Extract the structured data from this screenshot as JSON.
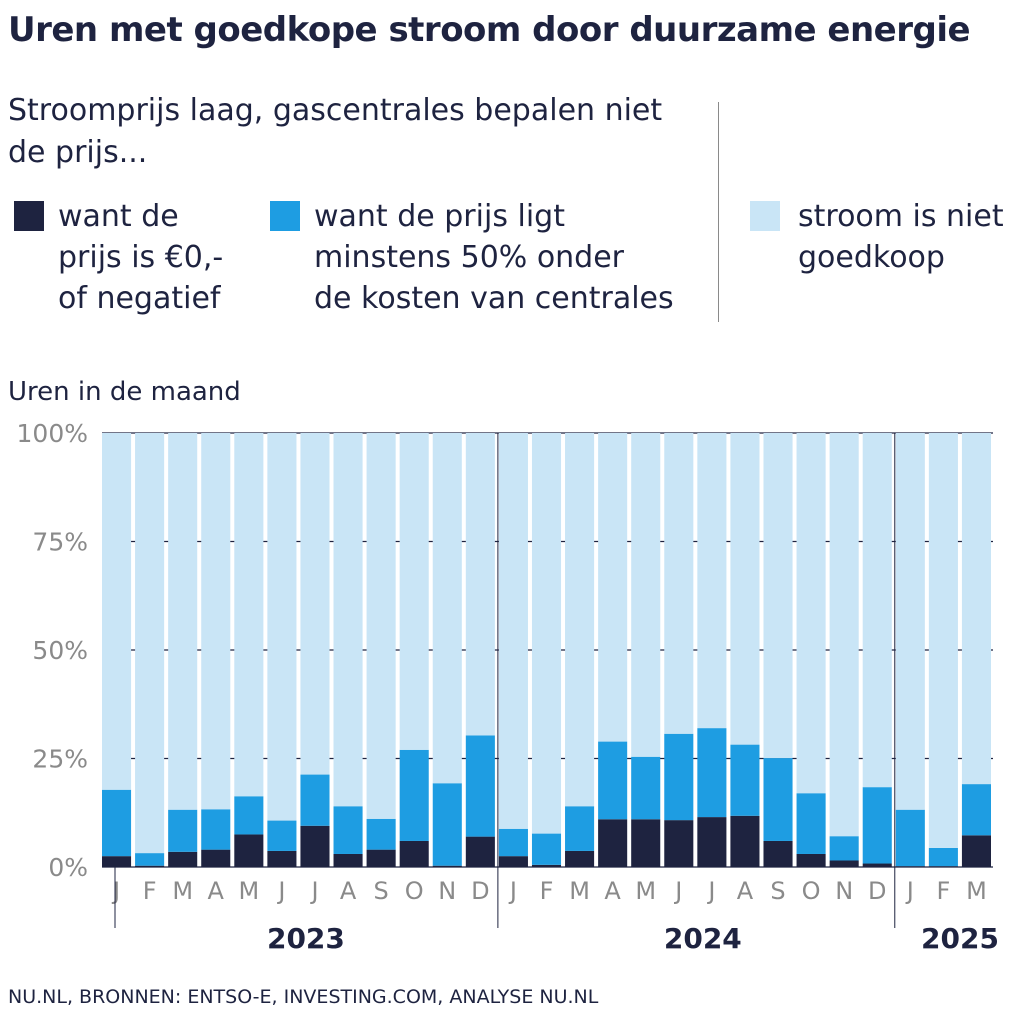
{
  "title": "Uren met goedkope stroom door duurzame energie",
  "subtitle": "Stroomprijs laag, gascentrales bepalen niet de prijs...",
  "legend": [
    {
      "label_lines": [
        "want de",
        "prijs is €0,-",
        "of negatief"
      ],
      "color": "#1e2340"
    },
    {
      "label_lines": [
        "want de prijs ligt",
        "minstens 50% onder",
        "de kosten van centrales"
      ],
      "color": "#1e9de2"
    },
    {
      "label_lines": [
        "stroom is niet",
        "goedkoop"
      ],
      "color": "#c9e5f6"
    }
  ],
  "footer": "NU.NL, BRONNEN: ENTSO-E, INVESTING.COM, ANALYSE NU.NL",
  "chart_data": {
    "type": "bar",
    "stacked": true,
    "ylabel": "Uren in de maand",
    "ylim": [
      0,
      100
    ],
    "yticks": [
      "0%",
      "25%",
      "50%",
      "75%",
      "100%"
    ],
    "grid": false,
    "categories": [
      "J",
      "F",
      "M",
      "A",
      "M",
      "J",
      "J",
      "A",
      "S",
      "O",
      "N",
      "D",
      "J",
      "F",
      "M",
      "A",
      "M",
      "J",
      "J",
      "A",
      "S",
      "O",
      "N",
      "D",
      "J",
      "F",
      "M"
    ],
    "years": [
      {
        "label": "2023",
        "months": 12
      },
      {
        "label": "2024",
        "months": 12
      },
      {
        "label": "2025",
        "months": 3
      }
    ],
    "series": [
      {
        "name": "want de prijs is €0,- of negatief",
        "color": "#1e2340",
        "values": [
          2.5,
          0.3,
          3.5,
          4,
          7.5,
          3.7,
          9.5,
          3,
          4,
          6,
          0.3,
          7,
          2.5,
          0.5,
          3.7,
          11,
          11,
          10.8,
          11.5,
          11.8,
          6,
          3,
          1.5,
          0.8,
          0.2,
          0.2,
          7.3
        ]
      },
      {
        "name": "want de prijs ligt minstens 50% onder de kosten van centrales",
        "color": "#1e9de2",
        "values": [
          15.3,
          2.9,
          9.7,
          9.3,
          8.8,
          7,
          11.8,
          11,
          7.1,
          21,
          19,
          23.3,
          6.3,
          7.2,
          10.3,
          17.9,
          14.4,
          19.9,
          20.5,
          16.4,
          19.1,
          14,
          5.6,
          17.6,
          13,
          4.2,
          11.8
        ]
      },
      {
        "name": "stroom is niet goedkoop",
        "color": "#c9e5f6",
        "values": [
          82.2,
          96.8,
          86.8,
          86.7,
          83.7,
          89.3,
          78.7,
          86,
          88.9,
          73,
          80.7,
          69.7,
          91.2,
          92.3,
          86,
          71.1,
          74.6,
          69.3,
          68,
          71.8,
          74.9,
          83,
          92.9,
          81.6,
          86.8,
          95.6,
          80.9
        ]
      }
    ]
  }
}
